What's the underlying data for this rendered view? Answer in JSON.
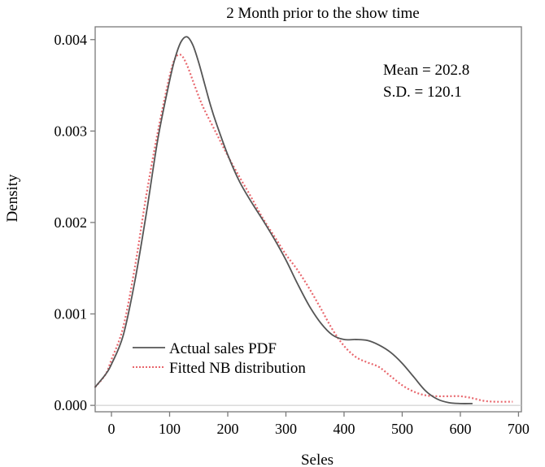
{
  "chart_data": {
    "type": "line",
    "title": "2 Month prior to the show time",
    "xlabel": "Seles",
    "ylabel": "Density",
    "xlim": [
      -28,
      705
    ],
    "ylim": [
      -7e-05,
      0.00414
    ],
    "x_ticks": [
      0,
      100,
      200,
      300,
      400,
      500,
      600,
      700
    ],
    "y_ticks": [
      0.0,
      0.001,
      0.002,
      0.003,
      0.004
    ],
    "y_tick_labels": [
      "0.000",
      "0.001",
      "0.002",
      "0.003",
      "0.004"
    ],
    "grid": false,
    "baseline_y": 0.0,
    "legend_position": "bottom-left",
    "annotations": [
      "Mean = 202.8",
      "S.D. = 120.1"
    ],
    "series": [
      {
        "name": "Actual sales PDF",
        "color": "#555555",
        "style": "solid",
        "points": [
          [
            -28,
            0.0002
          ],
          [
            -10,
            0.00034
          ],
          [
            0,
            0.00045
          ],
          [
            20,
            0.00076
          ],
          [
            40,
            0.00135
          ],
          [
            60,
            0.0021
          ],
          [
            80,
            0.00292
          ],
          [
            100,
            0.00355
          ],
          [
            110,
            0.00381
          ],
          [
            120,
            0.00398
          ],
          [
            130,
            0.00403
          ],
          [
            140,
            0.00394
          ],
          [
            150,
            0.00375
          ],
          [
            160,
            0.00352
          ],
          [
            170,
            0.00329
          ],
          [
            180,
            0.00309
          ],
          [
            200,
            0.00274
          ],
          [
            220,
            0.00245
          ],
          [
            240,
            0.00223
          ],
          [
            260,
            0.00203
          ],
          [
            280,
            0.00182
          ],
          [
            300,
            0.00159
          ],
          [
            320,
            0.00133
          ],
          [
            340,
            0.00109
          ],
          [
            360,
            0.0009
          ],
          [
            380,
            0.00077
          ],
          [
            400,
            0.00072
          ],
          [
            420,
            0.00072
          ],
          [
            440,
            0.00071
          ],
          [
            460,
            0.00066
          ],
          [
            480,
            0.00058
          ],
          [
            500,
            0.00046
          ],
          [
            520,
            0.00031
          ],
          [
            540,
            0.00016
          ],
          [
            560,
            7e-05
          ],
          [
            580,
            3e-05
          ],
          [
            600,
            2e-05
          ],
          [
            620,
            2e-05
          ]
        ]
      },
      {
        "name": "Fitted NB distribution",
        "color": "#e8666c",
        "style": "dotted",
        "points": [
          [
            -28,
            0.0002
          ],
          [
            -10,
            0.00034
          ],
          [
            0,
            0.0005
          ],
          [
            20,
            0.00085
          ],
          [
            40,
            0.0015
          ],
          [
            60,
            0.0023
          ],
          [
            80,
            0.003
          ],
          [
            100,
            0.0036
          ],
          [
            110,
            0.0038
          ],
          [
            120,
            0.00383
          ],
          [
            130,
            0.00372
          ],
          [
            140,
            0.00355
          ],
          [
            150,
            0.00338
          ],
          [
            160,
            0.00323
          ],
          [
            180,
            0.00298
          ],
          [
            200,
            0.00273
          ],
          [
            220,
            0.0025
          ],
          [
            240,
            0.00228
          ],
          [
            260,
            0.00205
          ],
          [
            280,
            0.00185
          ],
          [
            300,
            0.00165
          ],
          [
            320,
            0.00148
          ],
          [
            340,
            0.00128
          ],
          [
            360,
            0.00106
          ],
          [
            380,
            0.00083
          ],
          [
            400,
            0.00065
          ],
          [
            420,
            0.00053
          ],
          [
            440,
            0.00047
          ],
          [
            460,
            0.00042
          ],
          [
            480,
            0.00032
          ],
          [
            500,
            0.00022
          ],
          [
            520,
            0.00015
          ],
          [
            540,
            0.00011
          ],
          [
            560,
            0.0001
          ],
          [
            580,
            0.0001
          ],
          [
            600,
            0.0001
          ],
          [
            620,
            8e-05
          ],
          [
            640,
            5e-05
          ],
          [
            660,
            4e-05
          ],
          [
            690,
            4e-05
          ]
        ]
      }
    ]
  },
  "colors": {
    "background": "#ffffff",
    "frame": "#7a7a7a",
    "baseline": "#c8c8c8",
    "actual": "#555555",
    "fitted": "#e8666c"
  }
}
